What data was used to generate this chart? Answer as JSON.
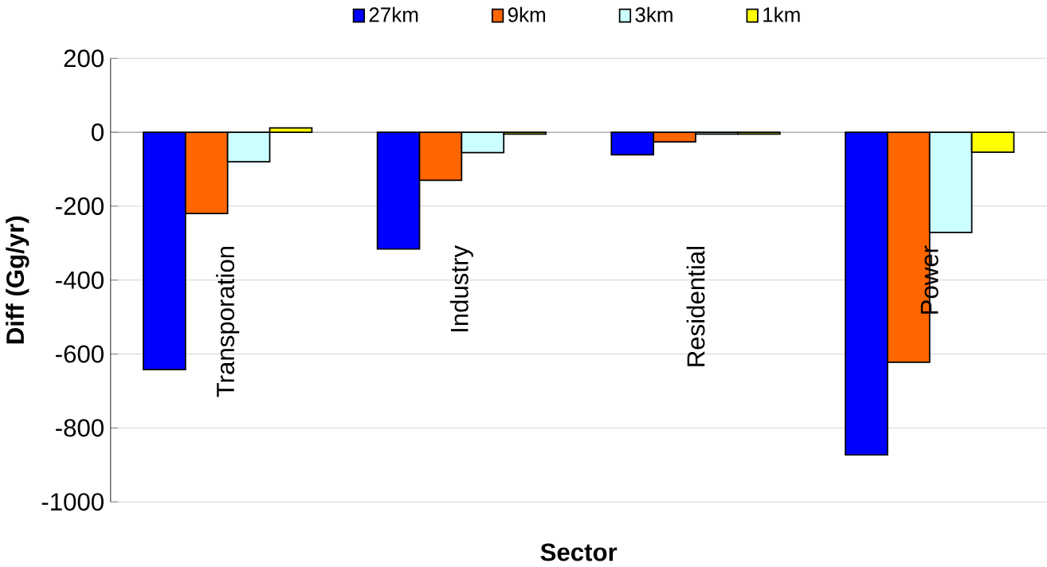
{
  "chart_data": {
    "type": "bar",
    "xlabel": "Sector",
    "ylabel": "Diff (Gg/yr)",
    "categories": [
      "Transporation",
      "Industry",
      "Residential",
      "Power"
    ],
    "series": [
      {
        "name": "27km",
        "color": "#0000ff",
        "values": [
          -642,
          -316,
          -61,
          -873
        ]
      },
      {
        "name": "9km",
        "color": "#ff6600",
        "values": [
          -220,
          -130,
          -26,
          -622
        ]
      },
      {
        "name": "3km",
        "color": "#ccffff",
        "values": [
          -80,
          -55,
          -5,
          -271
        ]
      },
      {
        "name": "1km",
        "color": "#ffff00",
        "values": [
          12,
          -5,
          -5,
          -54
        ]
      }
    ],
    "ylim": [
      -1000,
      200
    ],
    "yticks": [
      -1000,
      -800,
      -600,
      -400,
      -200,
      0,
      200
    ],
    "grid": "y",
    "legend": "top"
  }
}
